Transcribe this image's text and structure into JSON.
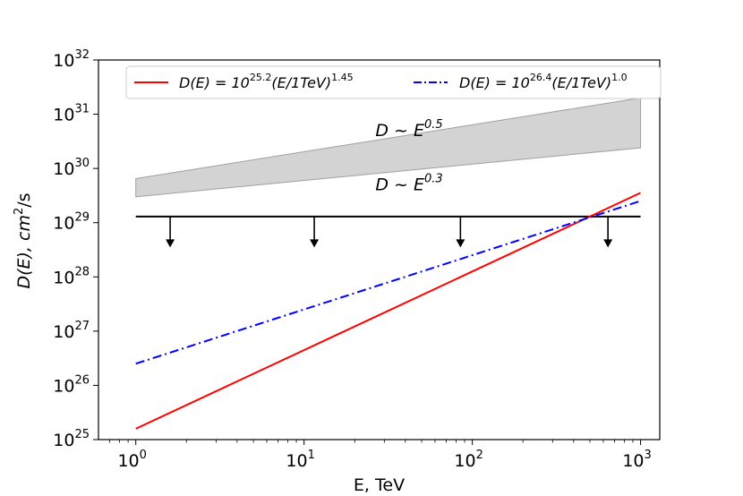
{
  "chart_data": {
    "type": "line",
    "x_scale": "log",
    "y_scale": "log",
    "xlim": [
      0.6,
      1300
    ],
    "ylim": [
      1e+25,
      1e+32
    ],
    "xlabel": "E, TeV",
    "ylabel_prefix": "D(E), cm",
    "ylabel_sup": "2",
    "ylabel_suffix": "/s",
    "x_ticks": [
      {
        "value": 1,
        "base": "10",
        "exp": "0"
      },
      {
        "value": 10,
        "base": "10",
        "exp": "1"
      },
      {
        "value": 100,
        "base": "10",
        "exp": "2"
      },
      {
        "value": 1000,
        "base": "10",
        "exp": "3"
      }
    ],
    "y_ticks": [
      {
        "value": 1e+25,
        "base": "10",
        "exp": "25"
      },
      {
        "value": 1e+26,
        "base": "10",
        "exp": "26"
      },
      {
        "value": 1e+27,
        "base": "10",
        "exp": "27"
      },
      {
        "value": 1e+28,
        "base": "10",
        "exp": "28"
      },
      {
        "value": 1e+29,
        "base": "10",
        "exp": "29"
      },
      {
        "value": 1e+30,
        "base": "10",
        "exp": "30"
      },
      {
        "value": 1e+31,
        "base": "10",
        "exp": "31"
      },
      {
        "value": 1e+32,
        "base": "10",
        "exp": "32"
      }
    ],
    "series": [
      {
        "name": "D(E) = 10^25.2 (E/1TeV)^1.45",
        "label_pre": "D(E) = 10",
        "label_exp1": "25.2",
        "label_mid": "(E/1TeV)",
        "label_exp2": "1.45",
        "color": "#ff0000",
        "style": "solid",
        "log10_norm": 25.2,
        "index": 1.45,
        "x": [
          1,
          1000
        ]
      },
      {
        "name": "D(E) = 10^26.4 (E/1TeV)^1.0",
        "label_pre": "D(E) = 10",
        "label_exp1": "26.4",
        "label_mid": "(E/1TeV)",
        "label_exp2": "1.0",
        "color": "#0000ff",
        "style": "dashdot",
        "log10_norm": 26.4,
        "index": 1.0,
        "x": [
          1,
          1000
        ]
      }
    ],
    "band": {
      "color": "#d3d3d3",
      "edge_color": "#a0a0a0",
      "upper": {
        "x": [
          1,
          1000
        ],
        "y": [
          6.5e+29,
          2e+31
        ]
      },
      "lower": {
        "x": [
          1,
          1000
        ],
        "y": [
          3e+29,
          2.4e+30
        ]
      },
      "upper_label": {
        "base": "D ~ E",
        "exp": "0.5",
        "x": 30,
        "y": 5e+30
      },
      "lower_label": {
        "base": "D ~ E",
        "exp": "0.3",
        "x": 30,
        "y": 5e+29
      }
    },
    "limit_line": {
      "y": 1.3e+29,
      "x": [
        1,
        1000
      ],
      "color": "#000000",
      "arrows_x": [
        1.6,
        11.5,
        85,
        640
      ],
      "arrow_to_y": 3.5e+28
    },
    "legend": {
      "position": "top",
      "columns": 2
    }
  }
}
